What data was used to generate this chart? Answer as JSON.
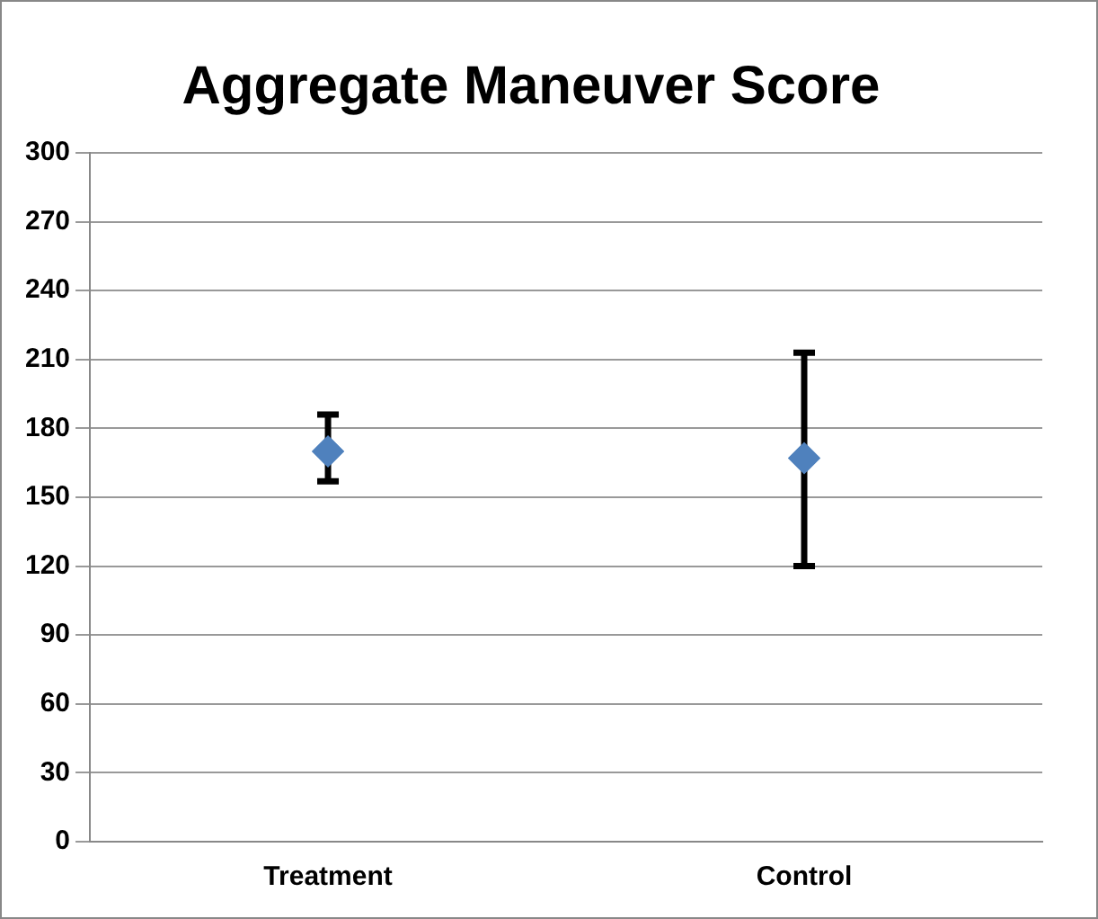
{
  "chart_data": {
    "type": "scatter",
    "title": "Aggregate Maneuver Score",
    "categories": [
      "Treatment",
      "Control"
    ],
    "values": [
      170,
      167
    ],
    "errors": [
      [
        157,
        186
      ],
      [
        120,
        213
      ]
    ],
    "color": "#4f81bd",
    "marker": "diamond",
    "ylim": [
      0,
      300
    ],
    "yticks": [
      0,
      30,
      60,
      90,
      120,
      150,
      180,
      210,
      240,
      270,
      300
    ],
    "grid": "y",
    "legend": false
  }
}
